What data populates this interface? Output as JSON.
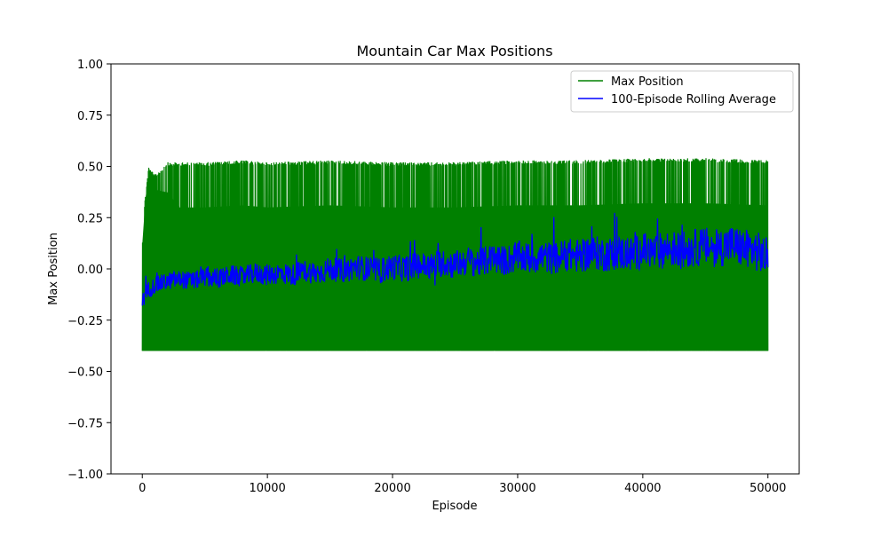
{
  "chart_data": {
    "type": "line",
    "title": "Mountain Car Max Positions",
    "xlabel": "Episode",
    "ylabel": "Max Position",
    "xlim": [
      -2500,
      52500
    ],
    "ylim": [
      -1.0,
      1.0
    ],
    "xticks": [
      0,
      10000,
      20000,
      30000,
      40000,
      50000
    ],
    "xtick_labels": [
      "0",
      "10000",
      "20000",
      "30000",
      "40000",
      "50000"
    ],
    "yticks": [
      -1.0,
      -0.75,
      -0.5,
      -0.25,
      0.0,
      0.25,
      0.5,
      0.75,
      1.0
    ],
    "ytick_labels": [
      "−1.00",
      "−0.75",
      "−0.50",
      "−0.25",
      "0.00",
      "0.25",
      "0.50",
      "0.75",
      "1.00"
    ],
    "grid": false,
    "legend_position": "top-right",
    "series": [
      {
        "name": "Max Position",
        "color": "#008000",
        "episodes": 50000,
        "envelope": {
          "x": [
            0,
            200,
            500,
            1000,
            2000,
            3000,
            5000,
            8000,
            10000,
            15000,
            20000,
            25000,
            30000,
            35000,
            40000,
            45000,
            50000
          ],
          "upper": [
            0.12,
            0.33,
            0.5,
            0.46,
            0.52,
            0.52,
            0.52,
            0.53,
            0.52,
            0.53,
            0.52,
            0.52,
            0.53,
            0.53,
            0.54,
            0.54,
            0.53
          ],
          "lower": [
            -0.4,
            -0.4,
            -0.4,
            -0.4,
            -0.4,
            -0.4,
            -0.4,
            -0.4,
            -0.4,
            -0.4,
            -0.4,
            -0.4,
            -0.4,
            -0.4,
            -0.4,
            -0.4,
            -0.4
          ]
        }
      },
      {
        "name": "100-Episode Rolling Average",
        "color": "#0000ff",
        "x": [
          0,
          500,
          1000,
          2000,
          3000,
          4000,
          5000,
          6000,
          7000,
          8000,
          9000,
          10000,
          11000,
          12000,
          13000,
          14000,
          15000,
          16000,
          17000,
          18000,
          19000,
          20000,
          21000,
          22000,
          23000,
          24000,
          25000,
          26000,
          27000,
          28000,
          29000,
          30000,
          31000,
          32000,
          33000,
          34000,
          35000,
          36000,
          37000,
          38000,
          39000,
          40000,
          41000,
          42000,
          43000,
          44000,
          45000,
          46000,
          47000,
          48000,
          49000,
          50000
        ],
        "y": [
          -0.16,
          -0.1,
          -0.08,
          -0.06,
          -0.05,
          -0.06,
          -0.04,
          -0.05,
          -0.03,
          -0.04,
          -0.02,
          -0.03,
          -0.02,
          -0.03,
          -0.01,
          -0.02,
          0.0,
          -0.01,
          0.01,
          0.0,
          -0.01,
          0.01,
          0.0,
          0.02,
          0.01,
          0.03,
          0.02,
          0.04,
          0.03,
          0.05,
          0.04,
          0.06,
          0.05,
          0.06,
          0.05,
          0.07,
          0.06,
          0.08,
          0.07,
          0.08,
          0.07,
          0.09,
          0.08,
          0.1,
          0.09,
          0.1,
          0.11,
          0.1,
          0.12,
          0.1,
          0.09,
          0.05
        ]
      }
    ]
  }
}
